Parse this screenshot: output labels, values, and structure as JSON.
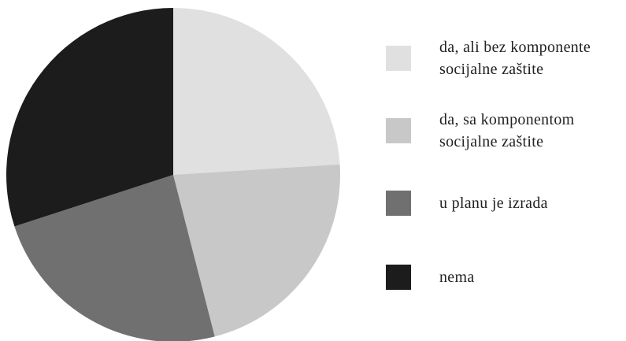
{
  "chart_data": {
    "type": "pie",
    "categories": [
      "da, ali bez komponente socijalne zaštite",
      "da, sa komponentom socijalne zaštite",
      "u planu je izrada",
      "nema"
    ],
    "values": [
      24,
      22,
      24,
      30
    ],
    "colors": [
      "#e0e0e0",
      "#c8c8c8",
      "#707070",
      "#1c1c1c"
    ],
    "start_angle": 0,
    "direction": "clockwise",
    "legend": "right"
  }
}
